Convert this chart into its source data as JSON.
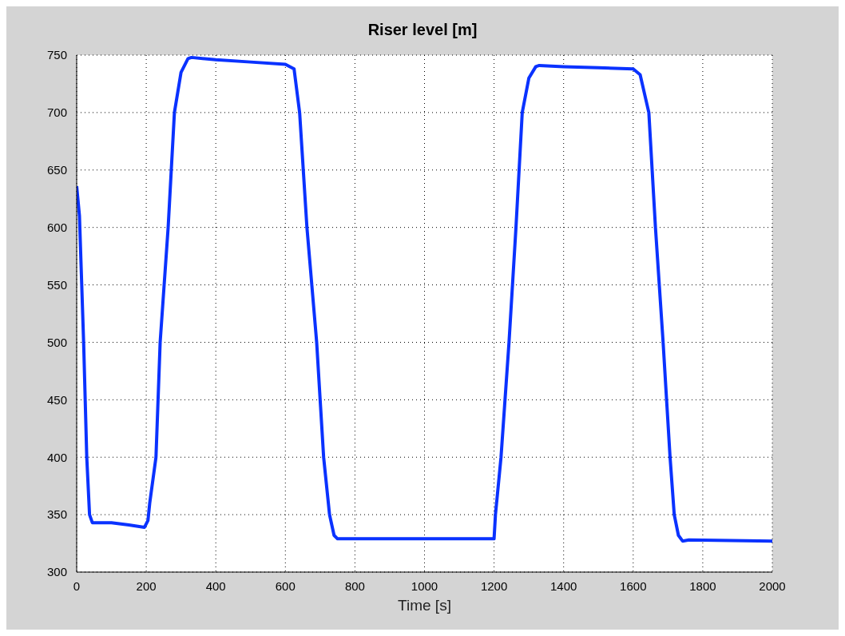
{
  "chart_data": {
    "type": "line",
    "title": "Riser level [m]",
    "xlabel": "Time [s]",
    "x": [
      0,
      8,
      20,
      29,
      37,
      45,
      100,
      150,
      195,
      205,
      210,
      228,
      240,
      263,
      281,
      300,
      320,
      330,
      400,
      500,
      600,
      625,
      641,
      662,
      690,
      710,
      727,
      740,
      750,
      800,
      1000,
      1200,
      1204,
      1220,
      1243,
      1263,
      1281,
      1300,
      1320,
      1330,
      1400,
      1500,
      1600,
      1620,
      1645,
      1664,
      1686,
      1706,
      1718,
      1730,
      1742,
      1760,
      2000
    ],
    "series": [
      {
        "color": "#0a32ff",
        "values": [
          636,
          610,
          500,
          400,
          350,
          343,
          343,
          341,
          339,
          345,
          360,
          400,
          500,
          600,
          700,
          735,
          747,
          748,
          746,
          744,
          742,
          738,
          700,
          600,
          500,
          400,
          350,
          332,
          329,
          329,
          329,
          329,
          350,
          400,
          500,
          600,
          700,
          730,
          740,
          741,
          740,
          739,
          738,
          733,
          700,
          600,
          500,
          400,
          350,
          332,
          327,
          328,
          327
        ]
      }
    ],
    "xlim": [
      0,
      2000
    ],
    "xticks": [
      0,
      200,
      400,
      600,
      800,
      1000,
      1200,
      1400,
      1600,
      1800,
      2000
    ],
    "ylim": [
      300,
      750
    ],
    "yticks": [
      300,
      350,
      400,
      450,
      500,
      550,
      600,
      650,
      700,
      750
    ],
    "grid": true,
    "line_style": "solid",
    "marker": "none",
    "legend": false
  }
}
